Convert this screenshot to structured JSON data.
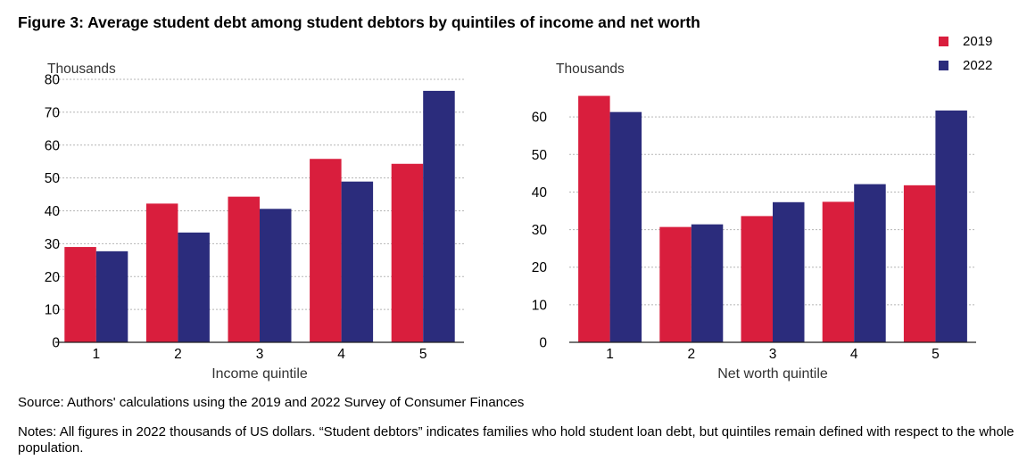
{
  "title": "Figure 3: Average student debt among student debtors by quintiles of income and net worth",
  "legend": [
    {
      "label": "2019",
      "color": "#d91e3d"
    },
    {
      "label": "2022",
      "color": "#2b2c7c"
    }
  ],
  "source": "Source: Authors' calculations using the 2019 and 2022 Survey of Consumer Finances",
  "notes": "Notes: All figures in 2022 thousands of US dollars. “Student debtors” indicates families who hold student loan debt, but quintiles remain defined with respect to the whole population.",
  "chart_data": [
    {
      "type": "bar",
      "unit_label": "Thousands",
      "xlabel": "Income quintile",
      "categories": [
        "1",
        "2",
        "3",
        "4",
        "5"
      ],
      "ylim": [
        0,
        80
      ],
      "yticks": [
        0,
        10,
        20,
        30,
        40,
        50,
        60,
        70,
        80
      ],
      "grid": true,
      "series": [
        {
          "name": "2019",
          "color": "#d91e3d",
          "values": [
            29,
            42.2,
            44.3,
            55.8,
            54.3
          ]
        },
        {
          "name": "2022",
          "color": "#2b2c7c",
          "values": [
            27.7,
            33.4,
            40.6,
            48.9,
            76.5
          ]
        }
      ]
    },
    {
      "type": "bar",
      "unit_label": "Thousands",
      "xlabel": "Net worth quintile",
      "categories": [
        "1",
        "2",
        "3",
        "4",
        "5"
      ],
      "ylim": [
        0,
        70
      ],
      "yticks": [
        0,
        10,
        20,
        30,
        40,
        50,
        60
      ],
      "grid": true,
      "series": [
        {
          "name": "2019",
          "color": "#d91e3d",
          "values": [
            65.6,
            30.7,
            33.6,
            37.4,
            41.8
          ]
        },
        {
          "name": "2022",
          "color": "#2b2c7c",
          "values": [
            61.3,
            31.4,
            37.3,
            42.1,
            61.7
          ]
        }
      ]
    }
  ]
}
